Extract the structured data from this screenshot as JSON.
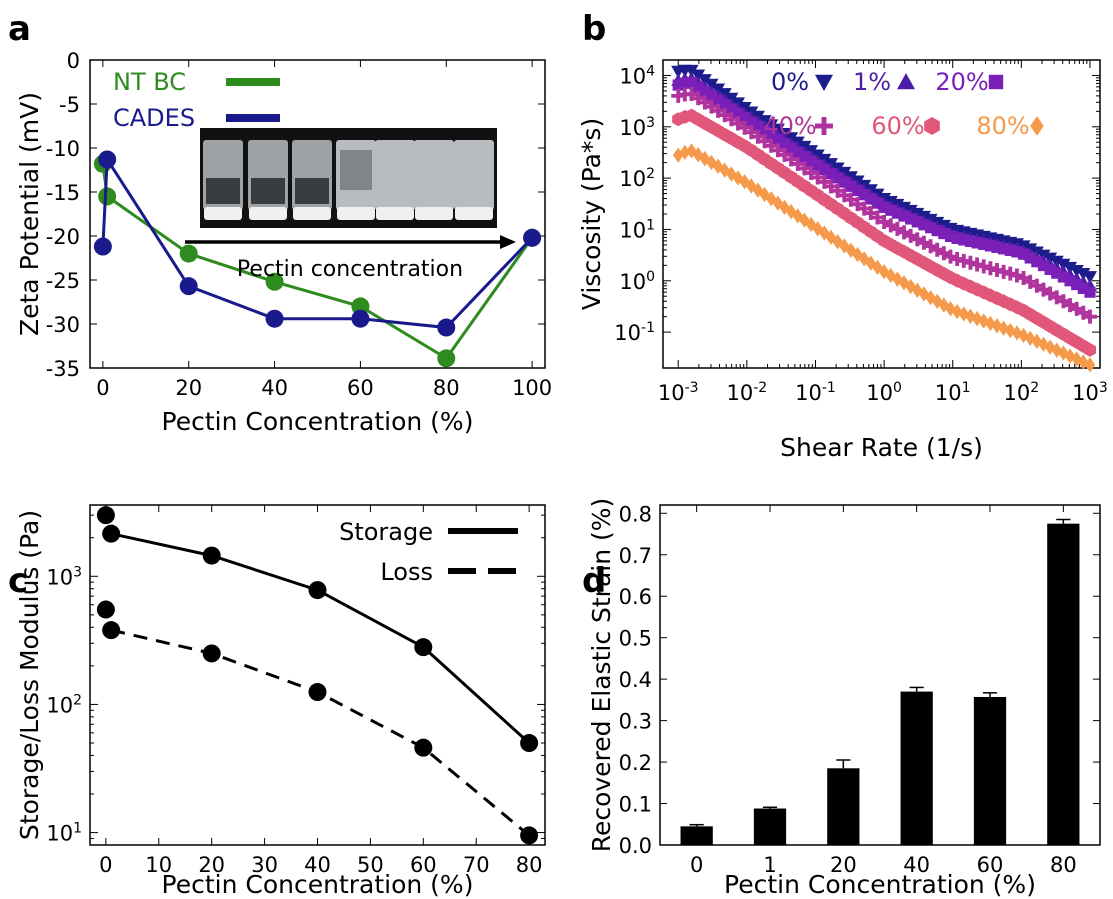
{
  "panel_labels": [
    "a",
    "b",
    "c",
    "d"
  ],
  "inset": {
    "caption": "Pectin concentration"
  },
  "chart_data": [
    {
      "panel": "a",
      "type": "line",
      "xlabel": "Pectin Concentration (%)",
      "ylabel": "Zeta Potential (mV)",
      "xlim": [
        -3,
        103
      ],
      "ylim": [
        -35,
        0
      ],
      "xticks": [
        0,
        20,
        40,
        60,
        80,
        100
      ],
      "yticks": [
        0,
        -5,
        -10,
        -15,
        -20,
        -25,
        -30,
        -35
      ],
      "legend_position": "top-left",
      "series": [
        {
          "name": "NT BC",
          "color": "#2e8b1e",
          "x": [
            0,
            1,
            20,
            40,
            60,
            80,
            100
          ],
          "values": [
            -11.8,
            -15.5,
            -22,
            -25.2,
            -28,
            -33.9,
            -20.2
          ]
        },
        {
          "name": "CADES",
          "color": "#1a1a8c",
          "x": [
            0,
            1,
            20,
            40,
            60,
            80,
            100
          ],
          "values": [
            -21.2,
            -11.3,
            -25.7,
            -29.4,
            -29.4,
            -30.4,
            -20.2
          ]
        }
      ]
    },
    {
      "panel": "b",
      "type": "scatter",
      "xlabel": "Shear Rate (1/s)",
      "ylabel": "Viscosity (Pa*s)",
      "xscale": "log",
      "yscale": "log",
      "xlim": [
        0.0006,
        1400
      ],
      "ylim": [
        0.02,
        20000
      ],
      "xticks": [
        "10-3",
        "10-2",
        "10-1",
        "100",
        "101",
        "102",
        "103"
      ],
      "yticks": [
        "104",
        "103",
        "102",
        "101",
        "100",
        "10-1"
      ],
      "legend_position": "top-right",
      "series": [
        {
          "name": "0%",
          "marker": "triangle-down",
          "color": "#1c1c8c",
          "x": [
            0.001,
            0.0015,
            0.01,
            0.1,
            1,
            10,
            100,
            1000
          ],
          "values": [
            12000,
            13000,
            2200,
            300,
            40,
            10,
            5,
            1.2
          ]
        },
        {
          "name": "1%",
          "marker": "triangle-up",
          "color": "#4b1ea5",
          "x": [
            0.001,
            0.0015,
            0.01,
            0.1,
            1,
            10,
            100,
            1000
          ],
          "values": [
            8000,
            9000,
            1700,
            230,
            32,
            8,
            4,
            0.8
          ]
        },
        {
          "name": "20%",
          "marker": "square",
          "color": "#7a1fb8",
          "x": [
            0.001,
            0.0015,
            0.01,
            0.1,
            1,
            10,
            100,
            1000
          ],
          "values": [
            6500,
            7500,
            1400,
            190,
            27,
            7,
            3.5,
            0.6
          ]
        },
        {
          "name": "40%",
          "marker": "plus",
          "color": "#b0339e",
          "x": [
            0.001,
            0.0015,
            0.01,
            0.1,
            1,
            10,
            100,
            1000
          ],
          "values": [
            4000,
            4500,
            900,
            110,
            14,
            2.8,
            1.2,
            0.2
          ]
        },
        {
          "name": "60%",
          "marker": "hexagon",
          "color": "#e0577a",
          "x": [
            0.001,
            0.0015,
            0.01,
            0.1,
            1,
            10,
            100,
            1000
          ],
          "values": [
            1400,
            1700,
            400,
            50,
            6,
            1.1,
            0.28,
            0.045
          ]
        },
        {
          "name": "80%",
          "marker": "diamond",
          "color": "#f59a4b",
          "x": [
            0.001,
            0.0015,
            0.01,
            0.1,
            1,
            10,
            100,
            1000
          ],
          "values": [
            280,
            350,
            80,
            11,
            1.5,
            0.27,
            0.09,
            0.023
          ]
        }
      ]
    },
    {
      "panel": "c",
      "type": "line",
      "xlabel": "Pectin Concentration (%)",
      "ylabel": "Storage/Loss Modulus (Pa)",
      "yscale": "log",
      "xlim": [
        -3,
        83
      ],
      "ylim": [
        8,
        3600
      ],
      "xticks": [
        0,
        10,
        20,
        30,
        40,
        50,
        60,
        70,
        80
      ],
      "yticks": [
        "103",
        "102",
        "101"
      ],
      "legend_position": "top-right",
      "series": [
        {
          "name": "Storage",
          "style": "solid",
          "x": [
            0,
            1,
            20,
            40,
            60,
            80
          ],
          "values": [
            3000,
            2150,
            1450,
            780,
            280,
            50
          ]
        },
        {
          "name": "Loss",
          "style": "dashed",
          "x": [
            0,
            1,
            20,
            40,
            60,
            80
          ],
          "values": [
            550,
            380,
            250,
            125,
            46,
            9.5
          ]
        }
      ]
    },
    {
      "panel": "d",
      "type": "bar",
      "xlabel": "Pectin Concentration (%)",
      "ylabel": "Recovered Elastic Strain (%)",
      "ylim": [
        0,
        0.82
      ],
      "yticks": [
        0.0,
        0.1,
        0.2,
        0.3,
        0.4,
        0.5,
        0.6,
        0.7,
        0.8
      ],
      "categories": [
        "0",
        "1",
        "20",
        "40",
        "60",
        "80"
      ],
      "values": [
        0.045,
        0.088,
        0.185,
        0.37,
        0.357,
        0.775
      ],
      "errors": [
        0.004,
        0.003,
        0.02,
        0.01,
        0.01,
        0.01
      ]
    }
  ]
}
